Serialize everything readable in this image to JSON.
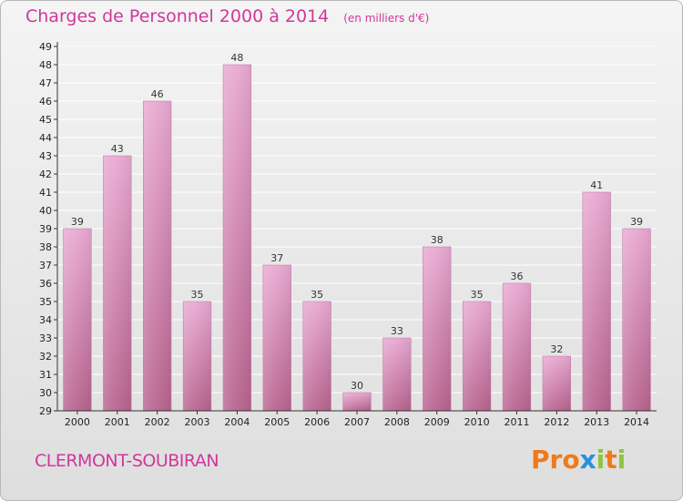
{
  "title": "Charges de Personnel 2000 à 2014",
  "subtitle": "(en milliers d'€)",
  "location": "CLERMONT-SOUBIRAN",
  "logo_text": "Proxiti",
  "colors": {
    "title": "#d0389a",
    "bar_top": "#e9a9d2",
    "bar_bottom": "#b8648f",
    "axis": "#333333",
    "grid": "#ffffff",
    "logo_letters": [
      "#f07a1a",
      "#f07a1a",
      "#f07a1a",
      "#2a8fd8",
      "#8cc63f",
      "#f07a1a",
      "#8cc63f"
    ]
  },
  "chart_data": {
    "type": "bar",
    "categories": [
      "2000",
      "2001",
      "2002",
      "2003",
      "2004",
      "2005",
      "2006",
      "2007",
      "2008",
      "2009",
      "2010",
      "2011",
      "2012",
      "2013",
      "2014"
    ],
    "values": [
      39,
      43,
      46,
      35,
      48,
      37,
      35,
      30,
      33,
      38,
      35,
      36,
      32,
      41,
      39
    ],
    "title": "Charges de Personnel 2000 à 2014",
    "subtitle": "(en milliers d'€)",
    "xlabel": "",
    "ylabel": "",
    "ylim": [
      29,
      49
    ],
    "yticks": [
      29,
      30,
      31,
      32,
      33,
      34,
      35,
      36,
      37,
      38,
      39,
      40,
      41,
      42,
      43,
      44,
      45,
      46,
      47,
      48,
      49
    ],
    "grid": true,
    "legend": "none"
  }
}
